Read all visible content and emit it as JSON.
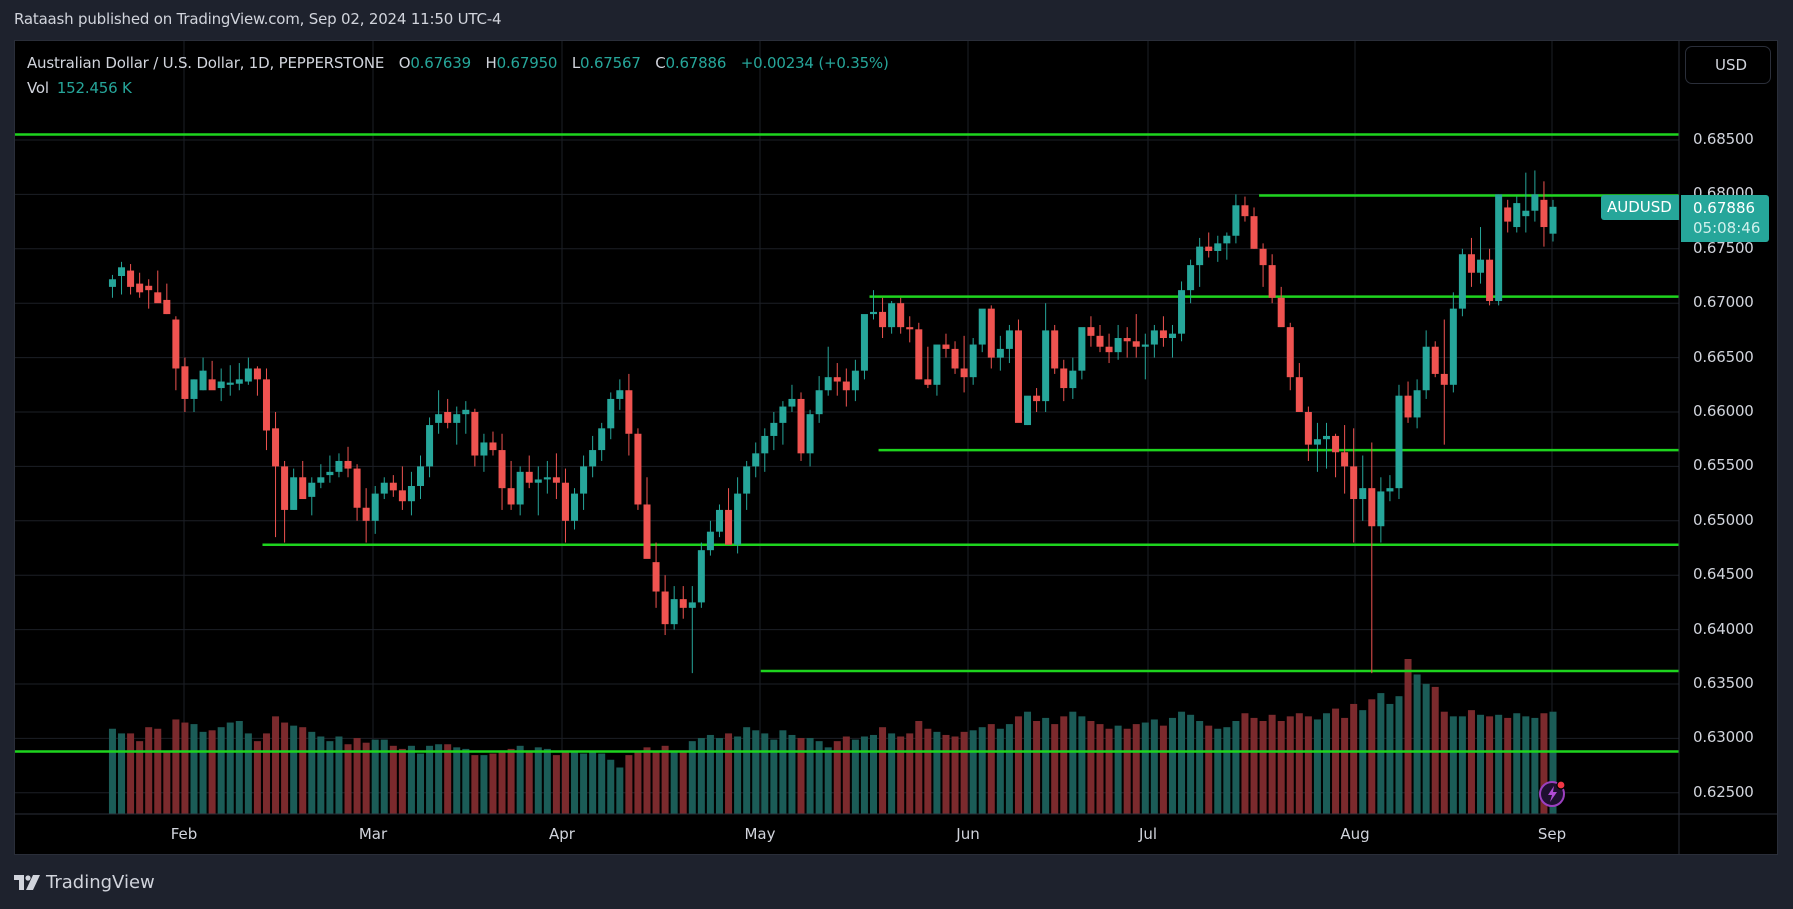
{
  "header": {
    "published": "Rataash published on TradingView.com, Sep 02, 2024 11:50 UTC-4"
  },
  "legend": {
    "symbol_desc": "Australian Dollar / U.S. Dollar, 1D, PEPPERSTONE",
    "o_label": "O",
    "o_value": "0.67639",
    "h_label": "H",
    "h_value": "0.67950",
    "l_label": "L",
    "l_value": "0.67567",
    "c_label": "C",
    "c_value": "0.67886",
    "change": "+0.00234 (+0.35%)",
    "vol_label": "Vol",
    "vol_value": "152.456 K"
  },
  "price_axis": {
    "currency_button": "USD",
    "ticks": [
      "0.68500",
      "0.68000",
      "0.67500",
      "0.67000",
      "0.66500",
      "0.66000",
      "0.65500",
      "0.65000",
      "0.64500",
      "0.64000",
      "0.63500",
      "0.63000",
      "0.62500"
    ],
    "last_symbol": "AUDUSD",
    "last_price": "0.67886",
    "countdown": "05:08:46"
  },
  "time_axis": {
    "labels": [
      "Feb",
      "Mar",
      "Apr",
      "May",
      "Jun",
      "Jul",
      "Aug",
      "Sep"
    ]
  },
  "footer": {
    "brand": "TradingView"
  },
  "colors": {
    "up": "#26a69a",
    "down": "#ef5350",
    "vol_up": "#1b5c57",
    "vol_down": "#7b2a2d",
    "level_line": "#1ed41e",
    "grid": "#1c1f26",
    "background": "#000000"
  },
  "chart_data": {
    "type": "candlestick",
    "title": "Australian Dollar / U.S. Dollar, 1D, PEPPERSTONE",
    "xlabel": "",
    "ylabel": "USD",
    "ylim": [
      0.6245,
      0.6875
    ],
    "x_ticks": [
      "Feb",
      "Mar",
      "Apr",
      "May",
      "Jun",
      "Jul",
      "Aug",
      "Sep"
    ],
    "y_ticks": [
      0.685,
      0.68,
      0.675,
      0.67,
      0.665,
      0.66,
      0.655,
      0.65,
      0.645,
      0.64,
      0.635,
      0.63,
      0.625
    ],
    "horizontal_levels": [
      {
        "price": 0.6855,
        "from_index": 0
      },
      {
        "price": 0.6799,
        "from_index": 127
      },
      {
        "price": 0.6706,
        "from_index": 84
      },
      {
        "price": 0.6565,
        "from_index": 85
      },
      {
        "price": 0.6478,
        "from_index": 17
      },
      {
        "price": 0.6362,
        "from_index": 72
      },
      {
        "price": 0.6288,
        "from_index": 0
      }
    ],
    "last": {
      "open": 0.67639,
      "high": 0.6795,
      "low": 0.67567,
      "close": 0.67886,
      "volume": "152.456K"
    },
    "ohlc": [
      [
        0.6715,
        0.6726,
        0.6705,
        0.6722
      ],
      [
        0.6725,
        0.6738,
        0.6708,
        0.6733
      ],
      [
        0.673,
        0.6736,
        0.6708,
        0.6715
      ],
      [
        0.6718,
        0.6728,
        0.6705,
        0.671
      ],
      [
        0.6716,
        0.6722,
        0.6695,
        0.6712
      ],
      [
        0.671,
        0.673,
        0.6706,
        0.67
      ],
      [
        0.6703,
        0.6718,
        0.669,
        0.669
      ],
      [
        0.6685,
        0.6688,
        0.662,
        0.664
      ],
      [
        0.6642,
        0.665,
        0.66,
        0.6612
      ],
      [
        0.6612,
        0.663,
        0.66,
        0.663
      ],
      [
        0.662,
        0.665,
        0.662,
        0.6638
      ],
      [
        0.663,
        0.6647,
        0.6622,
        0.662
      ],
      [
        0.6622,
        0.664,
        0.661,
        0.6628
      ],
      [
        0.6625,
        0.6643,
        0.6615,
        0.6627
      ],
      [
        0.6626,
        0.6645,
        0.662,
        0.663
      ],
      [
        0.6628,
        0.665,
        0.6625,
        0.664
      ],
      [
        0.664,
        0.6642,
        0.6615,
        0.663
      ],
      [
        0.663,
        0.664,
        0.6565,
        0.6583
      ],
      [
        0.6585,
        0.66,
        0.6485,
        0.655
      ],
      [
        0.655,
        0.6555,
        0.648,
        0.651
      ],
      [
        0.651,
        0.6548,
        0.651,
        0.654
      ],
      [
        0.654,
        0.6555,
        0.6532,
        0.652
      ],
      [
        0.6522,
        0.654,
        0.6505,
        0.6535
      ],
      [
        0.6535,
        0.6552,
        0.653,
        0.654
      ],
      [
        0.6542,
        0.656,
        0.6535,
        0.6545
      ],
      [
        0.6545,
        0.6562,
        0.654,
        0.6555
      ],
      [
        0.6555,
        0.6568,
        0.654,
        0.6548
      ],
      [
        0.6548,
        0.6552,
        0.65,
        0.6512
      ],
      [
        0.6512,
        0.653,
        0.648,
        0.65
      ],
      [
        0.65,
        0.6532,
        0.6488,
        0.6525
      ],
      [
        0.6525,
        0.654,
        0.652,
        0.6535
      ],
      [
        0.6535,
        0.6542,
        0.6522,
        0.6528
      ],
      [
        0.6528,
        0.655,
        0.651,
        0.6518
      ],
      [
        0.6518,
        0.6545,
        0.6505,
        0.6532
      ],
      [
        0.6532,
        0.656,
        0.652,
        0.655
      ],
      [
        0.655,
        0.6595,
        0.654,
        0.6588
      ],
      [
        0.659,
        0.662,
        0.658,
        0.6598
      ],
      [
        0.66,
        0.6612,
        0.6585,
        0.659
      ],
      [
        0.659,
        0.6605,
        0.657,
        0.6598
      ],
      [
        0.6598,
        0.661,
        0.658,
        0.6602
      ],
      [
        0.66,
        0.6603,
        0.655,
        0.656
      ],
      [
        0.656,
        0.658,
        0.6545,
        0.6572
      ],
      [
        0.6572,
        0.6582,
        0.656,
        0.6565
      ],
      [
        0.6565,
        0.658,
        0.651,
        0.653
      ],
      [
        0.653,
        0.6555,
        0.651,
        0.6515
      ],
      [
        0.6515,
        0.655,
        0.6505,
        0.6545
      ],
      [
        0.6545,
        0.656,
        0.653,
        0.6535
      ],
      [
        0.6535,
        0.655,
        0.6505,
        0.6538
      ],
      [
        0.6538,
        0.6555,
        0.6525,
        0.654
      ],
      [
        0.654,
        0.6562,
        0.652,
        0.6535
      ],
      [
        0.6535,
        0.6548,
        0.648,
        0.65
      ],
      [
        0.65,
        0.653,
        0.6492,
        0.6525
      ],
      [
        0.6525,
        0.656,
        0.651,
        0.655
      ],
      [
        0.655,
        0.6578,
        0.654,
        0.6565
      ],
      [
        0.6565,
        0.659,
        0.6555,
        0.6585
      ],
      [
        0.6585,
        0.6618,
        0.6575,
        0.6612
      ],
      [
        0.6612,
        0.663,
        0.6602,
        0.662
      ],
      [
        0.662,
        0.6635,
        0.656,
        0.658
      ],
      [
        0.658,
        0.6585,
        0.651,
        0.6515
      ],
      [
        0.6515,
        0.654,
        0.648,
        0.6465
      ],
      [
        0.6462,
        0.648,
        0.642,
        0.6435
      ],
      [
        0.6435,
        0.645,
        0.6395,
        0.6405
      ],
      [
        0.6405,
        0.644,
        0.64,
        0.6428
      ],
      [
        0.6428,
        0.644,
        0.641,
        0.642
      ],
      [
        0.642,
        0.644,
        0.636,
        0.6425
      ],
      [
        0.6425,
        0.648,
        0.642,
        0.6473
      ],
      [
        0.6473,
        0.65,
        0.6468,
        0.649
      ],
      [
        0.649,
        0.6515,
        0.6485,
        0.651
      ],
      [
        0.651,
        0.653,
        0.648,
        0.6478
      ],
      [
        0.6478,
        0.654,
        0.647,
        0.6525
      ],
      [
        0.6525,
        0.6555,
        0.651,
        0.655
      ],
      [
        0.655,
        0.6572,
        0.654,
        0.6562
      ],
      [
        0.6562,
        0.6585,
        0.6545,
        0.6578
      ],
      [
        0.6578,
        0.66,
        0.6565,
        0.659
      ],
      [
        0.659,
        0.661,
        0.657,
        0.6605
      ],
      [
        0.6605,
        0.6625,
        0.66,
        0.6612
      ],
      [
        0.6612,
        0.6618,
        0.6555,
        0.6562
      ],
      [
        0.6562,
        0.6602,
        0.655,
        0.6598
      ],
      [
        0.6598,
        0.6633,
        0.659,
        0.662
      ],
      [
        0.662,
        0.666,
        0.6615,
        0.6632
      ],
      [
        0.6632,
        0.6645,
        0.6615,
        0.6628
      ],
      [
        0.6628,
        0.664,
        0.6605,
        0.662
      ],
      [
        0.662,
        0.6648,
        0.661,
        0.6638
      ],
      [
        0.6638,
        0.668,
        0.663,
        0.669
      ],
      [
        0.669,
        0.6712,
        0.6685,
        0.6692
      ],
      [
        0.6692,
        0.6705,
        0.6668,
        0.6678
      ],
      [
        0.6678,
        0.6702,
        0.6672,
        0.67
      ],
      [
        0.67,
        0.6705,
        0.6672,
        0.6678
      ],
      [
        0.6678,
        0.6688,
        0.6664,
        0.6676
      ],
      [
        0.6676,
        0.6682,
        0.663,
        0.663
      ],
      [
        0.663,
        0.666,
        0.6622,
        0.6625
      ],
      [
        0.6625,
        0.6658,
        0.6615,
        0.6662
      ],
      [
        0.6662,
        0.6672,
        0.665,
        0.6658
      ],
      [
        0.6658,
        0.6665,
        0.6635,
        0.664
      ],
      [
        0.664,
        0.667,
        0.6618,
        0.6632
      ],
      [
        0.6632,
        0.6668,
        0.6625,
        0.6662
      ],
      [
        0.6662,
        0.6688,
        0.6655,
        0.6695
      ],
      [
        0.6695,
        0.6698,
        0.664,
        0.665
      ],
      [
        0.665,
        0.667,
        0.6638,
        0.6658
      ],
      [
        0.6658,
        0.668,
        0.6645,
        0.6675
      ],
      [
        0.6675,
        0.6685,
        0.6595,
        0.659
      ],
      [
        0.6588,
        0.661,
        0.6588,
        0.6615
      ],
      [
        0.6615,
        0.6622,
        0.66,
        0.661
      ],
      [
        0.661,
        0.67,
        0.66,
        0.6675
      ],
      [
        0.6675,
        0.668,
        0.6635,
        0.664
      ],
      [
        0.664,
        0.6648,
        0.661,
        0.6622
      ],
      [
        0.6622,
        0.665,
        0.6612,
        0.6638
      ],
      [
        0.6638,
        0.6675,
        0.663,
        0.6678
      ],
      [
        0.6678,
        0.6688,
        0.666,
        0.667
      ],
      [
        0.667,
        0.668,
        0.6655,
        0.666
      ],
      [
        0.666,
        0.6672,
        0.6645,
        0.6655
      ],
      [
        0.6655,
        0.668,
        0.6648,
        0.6668
      ],
      [
        0.6668,
        0.6678,
        0.665,
        0.6665
      ],
      [
        0.6665,
        0.669,
        0.665,
        0.666
      ],
      [
        0.666,
        0.6672,
        0.663,
        0.6662
      ],
      [
        0.6662,
        0.668,
        0.665,
        0.6675
      ],
      [
        0.6675,
        0.6688,
        0.666,
        0.6668
      ],
      [
        0.6668,
        0.668,
        0.665,
        0.6672
      ],
      [
        0.6672,
        0.672,
        0.6665,
        0.6712
      ],
      [
        0.6712,
        0.674,
        0.67,
        0.6735
      ],
      [
        0.6735,
        0.676,
        0.6715,
        0.6752
      ],
      [
        0.6752,
        0.6765,
        0.6742,
        0.6748
      ],
      [
        0.6748,
        0.6762,
        0.6738,
        0.6755
      ],
      [
        0.6755,
        0.6765,
        0.674,
        0.6762
      ],
      [
        0.6762,
        0.68,
        0.6755,
        0.679
      ],
      [
        0.679,
        0.6798,
        0.6775,
        0.678
      ],
      [
        0.678,
        0.6788,
        0.675,
        0.675
      ],
      [
        0.675,
        0.6755,
        0.6715,
        0.6735
      ],
      [
        0.6735,
        0.6745,
        0.67,
        0.6705
      ],
      [
        0.6705,
        0.6715,
        0.668,
        0.6678
      ],
      [
        0.6678,
        0.6682,
        0.662,
        0.6632
      ],
      [
        0.6632,
        0.6645,
        0.66,
        0.66
      ],
      [
        0.66,
        0.6605,
        0.6555,
        0.657
      ],
      [
        0.657,
        0.659,
        0.6545,
        0.6575
      ],
      [
        0.6575,
        0.659,
        0.6548,
        0.6578
      ],
      [
        0.6578,
        0.658,
        0.654,
        0.6563
      ],
      [
        0.6563,
        0.6588,
        0.6525,
        0.655
      ],
      [
        0.655,
        0.6585,
        0.648,
        0.652
      ],
      [
        0.652,
        0.656,
        0.65,
        0.653
      ],
      [
        0.653,
        0.6572,
        0.636,
        0.6495
      ],
      [
        0.6495,
        0.654,
        0.648,
        0.6527
      ],
      [
        0.6527,
        0.6542,
        0.6518,
        0.653
      ],
      [
        0.653,
        0.6625,
        0.652,
        0.6615
      ],
      [
        0.6615,
        0.6628,
        0.659,
        0.6595
      ],
      [
        0.6595,
        0.663,
        0.6585,
        0.662
      ],
      [
        0.662,
        0.6675,
        0.6612,
        0.666
      ],
      [
        0.666,
        0.6665,
        0.6632,
        0.6635
      ],
      [
        0.6635,
        0.6685,
        0.657,
        0.6625
      ],
      [
        0.6625,
        0.671,
        0.6618,
        0.6695
      ],
      [
        0.6695,
        0.675,
        0.6688,
        0.6745
      ],
      [
        0.6745,
        0.676,
        0.6715,
        0.6728
      ],
      [
        0.6728,
        0.677,
        0.6718,
        0.674
      ],
      [
        0.674,
        0.675,
        0.6698,
        0.6702
      ],
      [
        0.6702,
        0.68,
        0.6698,
        0.68
      ],
      [
        0.6788,
        0.6795,
        0.6765,
        0.6775
      ],
      [
        0.677,
        0.6798,
        0.6765,
        0.6792
      ],
      [
        0.678,
        0.682,
        0.6765,
        0.6785
      ],
      [
        0.6785,
        0.6822,
        0.6775,
        0.68
      ],
      [
        0.6795,
        0.6812,
        0.6752,
        0.677
      ],
      [
        0.67639,
        0.6795,
        0.67567,
        0.67886
      ]
    ],
    "volume": [
      0.55,
      0.52,
      0.52,
      0.47,
      0.56,
      0.55,
      0.4,
      0.61,
      0.59,
      0.58,
      0.53,
      0.54,
      0.56,
      0.59,
      0.6,
      0.52,
      0.47,
      0.52,
      0.63,
      0.59,
      0.57,
      0.56,
      0.53,
      0.5,
      0.47,
      0.5,
      0.45,
      0.49,
      0.46,
      0.48,
      0.48,
      0.44,
      0.42,
      0.44,
      0.39,
      0.44,
      0.45,
      0.45,
      0.43,
      0.42,
      0.38,
      0.38,
      0.39,
      0.41,
      0.42,
      0.44,
      0.41,
      0.43,
      0.42,
      0.38,
      0.41,
      0.4,
      0.39,
      0.4,
      0.39,
      0.35,
      0.3,
      0.38,
      0.4,
      0.43,
      0.4,
      0.44,
      0.41,
      0.41,
      0.47,
      0.49,
      0.51,
      0.49,
      0.52,
      0.5,
      0.56,
      0.54,
      0.52,
      0.48,
      0.54,
      0.51,
      0.49,
      0.49,
      0.47,
      0.43,
      0.47,
      0.5,
      0.48,
      0.5,
      0.51,
      0.56,
      0.52,
      0.5,
      0.52,
      0.6,
      0.55,
      0.53,
      0.51,
      0.5,
      0.53,
      0.54,
      0.56,
      0.58,
      0.55,
      0.58,
      0.63,
      0.66,
      0.6,
      0.62,
      0.58,
      0.63,
      0.66,
      0.63,
      0.6,
      0.58,
      0.55,
      0.57,
      0.55,
      0.58,
      0.59,
      0.61,
      0.57,
      0.62,
      0.66,
      0.64,
      0.6,
      0.57,
      0.55,
      0.56,
      0.6,
      0.65,
      0.62,
      0.6,
      0.64,
      0.6,
      0.63,
      0.65,
      0.63,
      0.61,
      0.65,
      0.68,
      0.62,
      0.71,
      0.67,
      0.74,
      0.78,
      0.71,
      0.76,
      1.0,
      0.9,
      0.84,
      0.82,
      0.66,
      0.63,
      0.63,
      0.67,
      0.64,
      0.63,
      0.64,
      0.62,
      0.65,
      0.63,
      0.62,
      0.65,
      0.66,
      0.63,
      0.63,
      0.64,
      0.62,
      0.64,
      0.66,
      0.62,
      0.35
    ]
  }
}
